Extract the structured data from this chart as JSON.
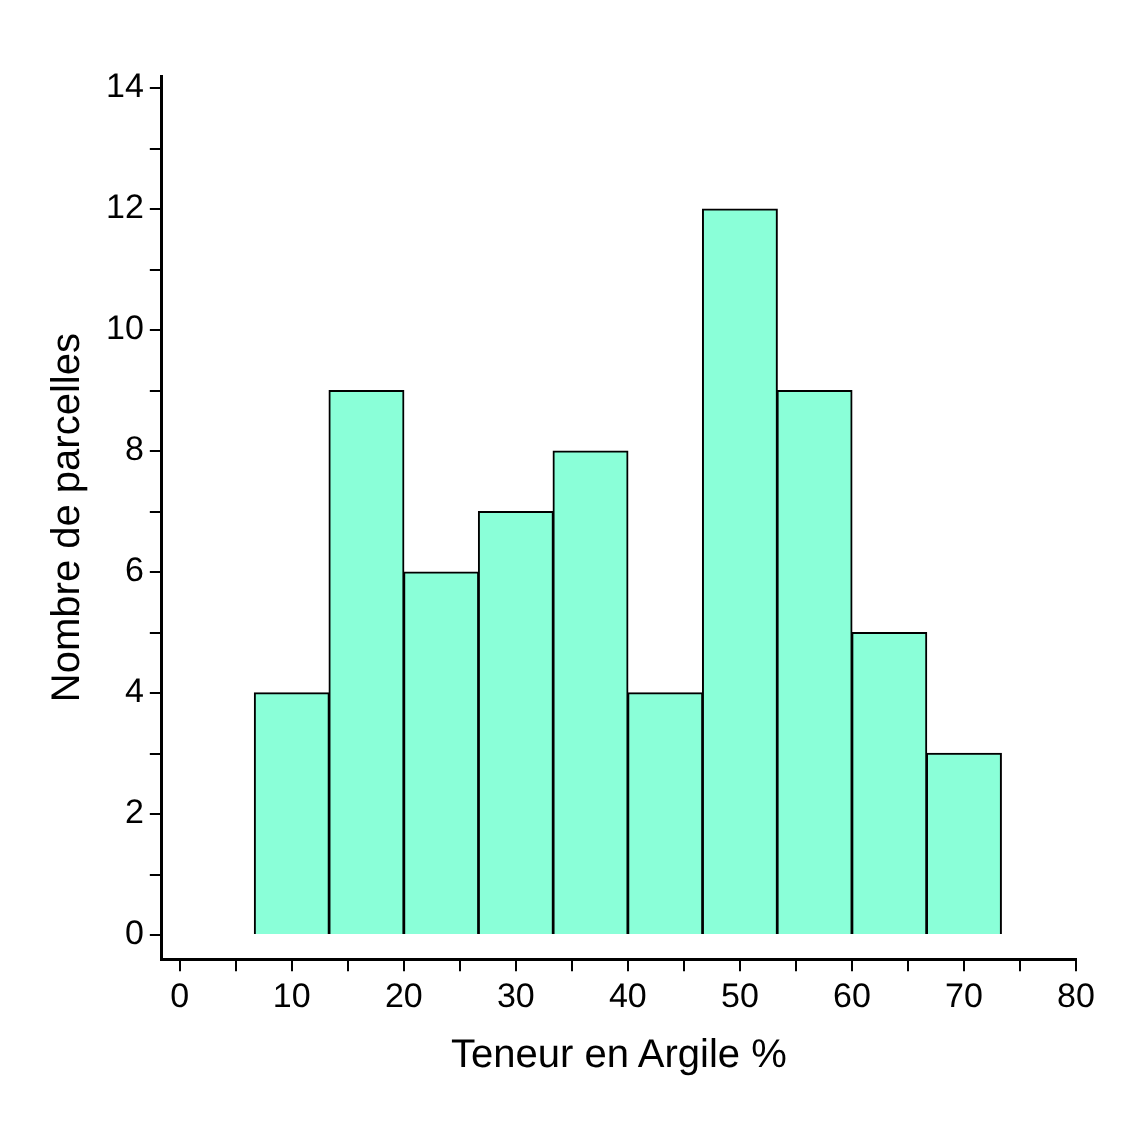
{
  "chart_data": {
    "type": "histogram",
    "xlabel": "Teneur en Argile %",
    "ylabel": "Nombre de parcelles",
    "bins": [
      6.67,
      13.33,
      20,
      26.67,
      33.33,
      40,
      46.67,
      53.33,
      60,
      66.67,
      73.33
    ],
    "values": [
      4,
      9,
      6,
      7,
      8,
      4,
      12,
      9,
      5,
      3
    ],
    "color": "#8affd8",
    "xlim": [
      -1.6,
      80
    ],
    "ylim": [
      -0.4,
      14.2
    ],
    "xticks": [
      0,
      {
        "value": 5,
        "label": null
      },
      10,
      {
        "value": 15,
        "label": null
      },
      20,
      {
        "value": 25,
        "label": null
      },
      30,
      {
        "value": 35,
        "label": null
      },
      40,
      {
        "value": 45,
        "label": null
      },
      50,
      {
        "value": 55,
        "label": null
      },
      60,
      {
        "value": 65,
        "label": null
      },
      70,
      {
        "value": 75,
        "label": null
      },
      80
    ],
    "yticks": [
      0,
      {
        "value": 1,
        "label": null
      },
      2,
      {
        "value": 3,
        "label": null
      },
      4,
      {
        "value": 5,
        "label": null
      },
      6,
      {
        "value": 7,
        "label": null
      },
      8,
      {
        "value": 9,
        "label": null
      },
      10,
      {
        "value": 11,
        "label": null
      },
      12,
      {
        "value": 13,
        "label": null
      },
      14
    ],
    "grid": false,
    "legend": false
  }
}
